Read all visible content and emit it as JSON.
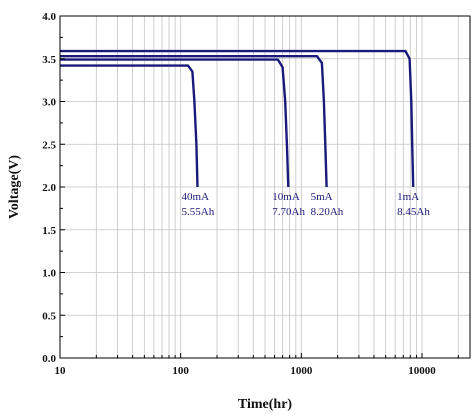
{
  "chart_data": {
    "type": "line",
    "xlabel": "Time(hr)",
    "ylabel": "Voltage(V)",
    "xscale": "log",
    "xlim": [
      10,
      25000
    ],
    "ylim": [
      0.0,
      4.0
    ],
    "grid": true,
    "x_ticks": [
      {
        "value": 10,
        "label": "10"
      },
      {
        "value": 100,
        "label": "100"
      },
      {
        "value": 1000,
        "label": "1000"
      },
      {
        "value": 10000,
        "label": "10000"
      }
    ],
    "y_ticks": [
      {
        "value": 0.0,
        "label": "0.0"
      },
      {
        "value": 0.5,
        "label": "0.5"
      },
      {
        "value": 1.0,
        "label": "1.0"
      },
      {
        "value": 1.5,
        "label": "1.5"
      },
      {
        "value": 2.0,
        "label": "2.0"
      },
      {
        "value": 2.5,
        "label": "2.5"
      },
      {
        "value": 3.0,
        "label": "3.0"
      },
      {
        "value": 3.5,
        "label": "3.5"
      },
      {
        "value": 4.0,
        "label": "4.0"
      }
    ],
    "line_color": "#1a1a7a",
    "series": [
      {
        "key": "40mA",
        "points": [
          [
            10,
            3.42
          ],
          [
            115,
            3.42
          ],
          [
            125,
            3.35
          ],
          [
            130,
            3.0
          ],
          [
            135,
            2.5
          ],
          [
            138,
            2.0
          ]
        ],
        "annotation": {
          "line1": "40mA",
          "line2": "5.55Ah",
          "x": 138,
          "y": 2.0
        }
      },
      {
        "key": "10mA",
        "points": [
          [
            10,
            3.49
          ],
          [
            640,
            3.49
          ],
          [
            700,
            3.4
          ],
          [
            735,
            3.0
          ],
          [
            760,
            2.5
          ],
          [
            780,
            2.0
          ]
        ],
        "annotation": {
          "line1": "10mA",
          "line2": "7.70Ah",
          "x": 780,
          "y": 2.0
        }
      },
      {
        "key": "5mA",
        "points": [
          [
            10,
            3.53
          ],
          [
            1350,
            3.53
          ],
          [
            1480,
            3.45
          ],
          [
            1540,
            3.0
          ],
          [
            1580,
            2.5
          ],
          [
            1620,
            2.0
          ]
        ],
        "annotation": {
          "line1": "5mA",
          "line2": "8.20Ah",
          "x": 1620,
          "y": 2.0
        }
      },
      {
        "key": "1mA",
        "points": [
          [
            10,
            3.59
          ],
          [
            7300,
            3.59
          ],
          [
            7900,
            3.5
          ],
          [
            8150,
            3.0
          ],
          [
            8300,
            2.5
          ],
          [
            8450,
            2.0
          ]
        ],
        "annotation": {
          "line1": "1mA",
          "line2": "8.45Ah",
          "x": 8450,
          "y": 2.0
        }
      }
    ]
  }
}
